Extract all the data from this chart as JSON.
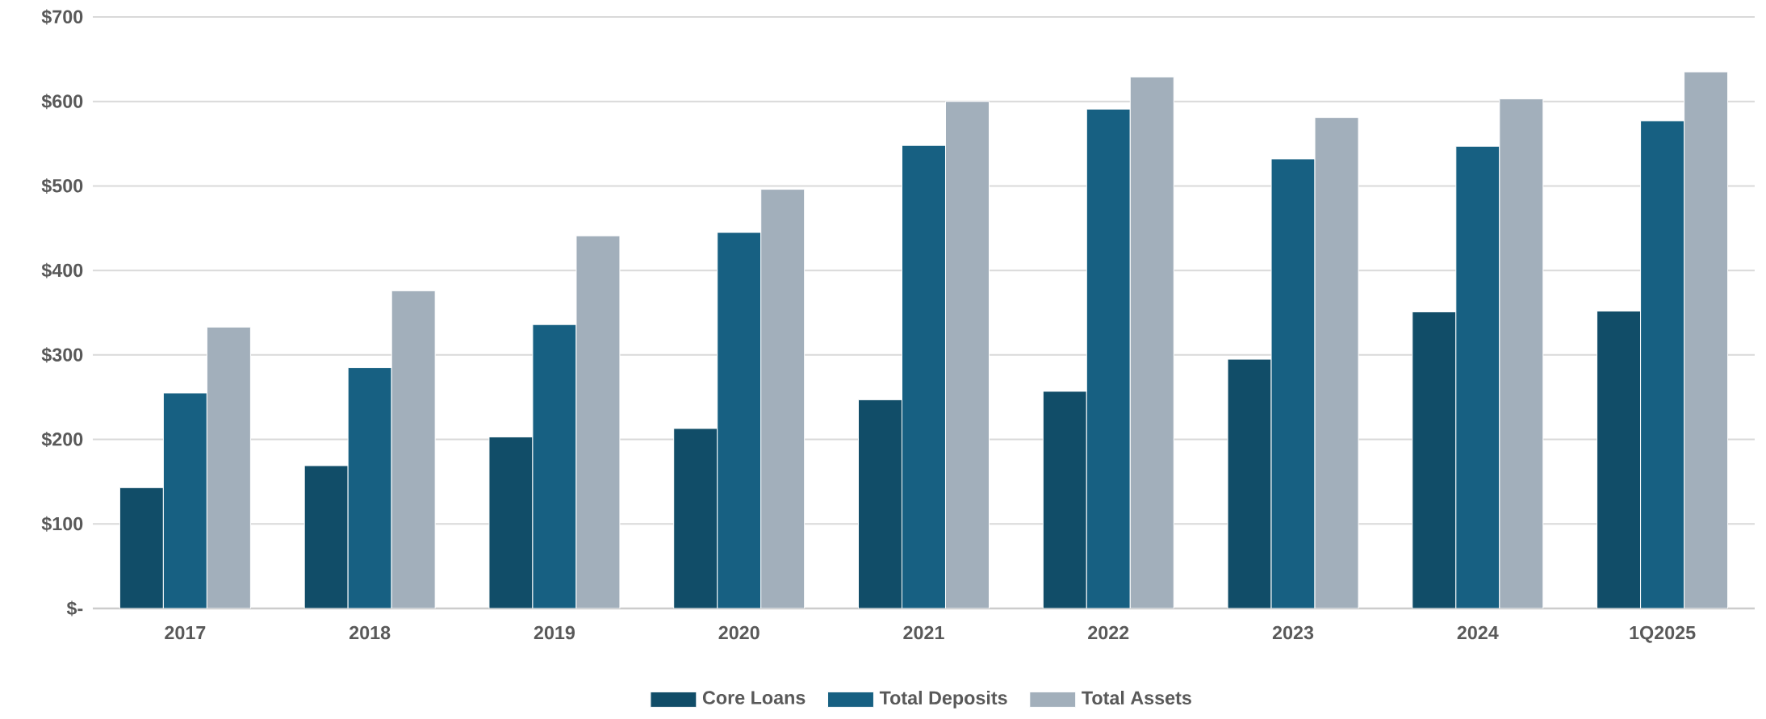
{
  "chart_data": {
    "type": "bar",
    "categories": [
      "2017",
      "2018",
      "2019",
      "2020",
      "2021",
      "2022",
      "2023",
      "2024",
      "1Q2025"
    ],
    "series": [
      {
        "name": "Core Loans",
        "color": "#114d68",
        "values": [
          143,
          169,
          203,
          213,
          247,
          257,
          295,
          351,
          352
        ]
      },
      {
        "name": "Total Deposits",
        "color": "#176082",
        "values": [
          255,
          285,
          336,
          445,
          548,
          591,
          532,
          547,
          577
        ]
      },
      {
        "name": "Total Assets",
        "color": "#a2afbb",
        "values": [
          333,
          376,
          441,
          496,
          600,
          629,
          581,
          603,
          635
        ]
      }
    ],
    "ylim": [
      0,
      700
    ],
    "yticks": [
      {
        "value": 0,
        "label": "$-"
      },
      {
        "value": 100,
        "label": "$100"
      },
      {
        "value": 200,
        "label": "$200"
      },
      {
        "value": 300,
        "label": "$300"
      },
      {
        "value": 400,
        "label": "$400"
      },
      {
        "value": 500,
        "label": "$500"
      },
      {
        "value": 600,
        "label": "$600"
      },
      {
        "value": 700,
        "label": "$700"
      }
    ],
    "grid": "y",
    "legend": "bottom"
  }
}
